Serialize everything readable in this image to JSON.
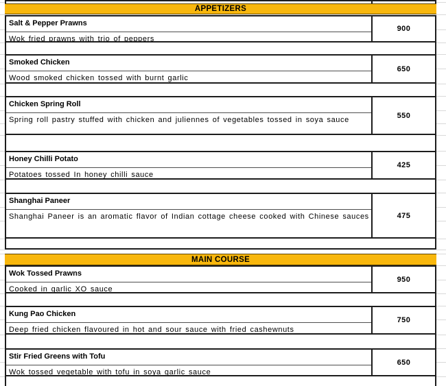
{
  "sections": [
    {
      "title": "APPETIZERS",
      "items": [
        {
          "name": "Salt & Pepper Prawns",
          "description": "Wok fried prawns with trio of peppers",
          "price": "900"
        },
        {
          "name": "Smoked Chicken",
          "description": "Wood smoked chicken tossed with burnt garlic",
          "price": "650"
        },
        {
          "name": "Chicken Spring Roll",
          "description": "Spring roll pastry stuffed with chicken and juliennes of vegetables tossed in soya sauce",
          "price": "550"
        },
        {
          "name": "Honey Chilli Potato",
          "description": "Potatoes tossed In honey chilli sauce",
          "price": "425"
        },
        {
          "name": "Shanghai Paneer",
          "description": "Shanghai Paneer is an aromatic flavor of Indian cottage cheese cooked with Chinese sauces",
          "price": "475"
        }
      ]
    },
    {
      "title": "MAIN COURSE",
      "items": [
        {
          "name": "Wok Tossed Prawns",
          "description": "Cooked in garlic XO sauce",
          "price": "950"
        },
        {
          "name": "Kung Pao Chicken",
          "description": "Deep fried chicken flavoured in hot and sour sauce with fried cashewnuts",
          "price": "750"
        },
        {
          "name": "Stir Fried Greens with Tofu",
          "description": "Wok tossed vegetable with tofu in soya garlic sauce",
          "price": "650"
        }
      ]
    }
  ],
  "colors": {
    "section_header_bg": "#F8B70D",
    "table_border": "#1C1C1C",
    "margin_gridline": "#D9D9D9"
  }
}
